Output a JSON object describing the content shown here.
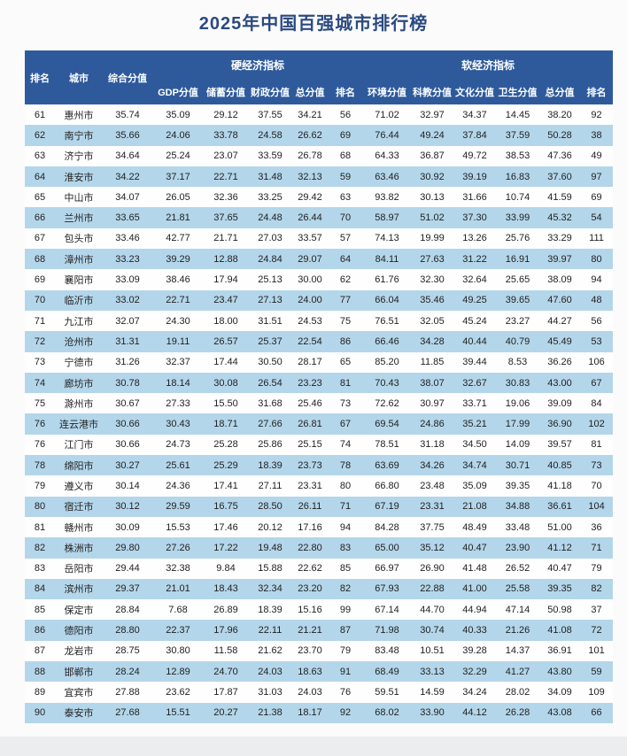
{
  "title": "2025年中国百强城市排行榜",
  "colors": {
    "header_bg": "#2e5a9c",
    "row_alt_bg": "#b4d6ea",
    "row_bg": "#fefefe",
    "title_text": "#2b4a80",
    "header_text": "#ffffff",
    "body_text": "#1f1f1f"
  },
  "table": {
    "header": {
      "rank": "排名",
      "city": "城市",
      "composite": "综合分值",
      "hard_group": "硬经济指标",
      "soft_group": "软经济指标",
      "hard_cols": [
        "GDP分值",
        "储蓄分值",
        "财政分值",
        "总分值",
        "排名"
      ],
      "soft_cols": [
        "环境分值",
        "科教分值",
        "文化分值",
        "卫生分值",
        "总分值",
        "排名"
      ]
    },
    "rows": [
      [
        "61",
        "惠州市",
        "35.74",
        "35.09",
        "29.12",
        "37.55",
        "34.21",
        "56",
        "71.02",
        "32.97",
        "34.37",
        "14.45",
        "38.20",
        "92"
      ],
      [
        "62",
        "南宁市",
        "35.66",
        "24.06",
        "33.78",
        "24.58",
        "26.62",
        "69",
        "76.44",
        "49.24",
        "37.84",
        "37.59",
        "50.28",
        "38"
      ],
      [
        "63",
        "济宁市",
        "34.64",
        "25.24",
        "23.07",
        "33.59",
        "26.78",
        "68",
        "64.33",
        "36.87",
        "49.72",
        "38.53",
        "47.36",
        "49"
      ],
      [
        "64",
        "淮安市",
        "34.22",
        "37.17",
        "22.71",
        "31.48",
        "32.13",
        "59",
        "63.46",
        "30.92",
        "39.19",
        "16.83",
        "37.60",
        "97"
      ],
      [
        "65",
        "中山市",
        "34.07",
        "26.05",
        "32.36",
        "33.25",
        "29.42",
        "63",
        "93.82",
        "30.13",
        "31.66",
        "10.74",
        "41.59",
        "69"
      ],
      [
        "66",
        "兰州市",
        "33.65",
        "21.81",
        "37.65",
        "24.48",
        "26.44",
        "70",
        "58.97",
        "51.02",
        "37.30",
        "33.99",
        "45.32",
        "54"
      ],
      [
        "67",
        "包头市",
        "33.46",
        "42.77",
        "21.71",
        "27.03",
        "33.57",
        "57",
        "74.13",
        "19.99",
        "13.26",
        "25.76",
        "33.29",
        "111"
      ],
      [
        "68",
        "漳州市",
        "33.23",
        "39.29",
        "12.88",
        "24.84",
        "29.07",
        "64",
        "84.11",
        "27.63",
        "31.22",
        "16.91",
        "39.97",
        "80"
      ],
      [
        "69",
        "襄阳市",
        "33.09",
        "38.46",
        "17.94",
        "25.13",
        "30.00",
        "62",
        "61.76",
        "32.30",
        "32.64",
        "25.65",
        "38.09",
        "94"
      ],
      [
        "70",
        "临沂市",
        "33.02",
        "22.71",
        "23.47",
        "27.13",
        "24.00",
        "77",
        "66.04",
        "35.46",
        "49.25",
        "39.65",
        "47.60",
        "48"
      ],
      [
        "71",
        "九江市",
        "32.07",
        "24.30",
        "18.00",
        "31.51",
        "24.53",
        "75",
        "76.51",
        "32.05",
        "45.24",
        "23.27",
        "44.27",
        "56"
      ],
      [
        "72",
        "沧州市",
        "31.31",
        "19.11",
        "26.57",
        "25.37",
        "22.54",
        "86",
        "66.46",
        "34.28",
        "40.44",
        "40.79",
        "45.49",
        "53"
      ],
      [
        "73",
        "宁德市",
        "31.26",
        "32.37",
        "17.44",
        "30.50",
        "28.17",
        "65",
        "85.20",
        "11.85",
        "39.44",
        "8.53",
        "36.26",
        "106"
      ],
      [
        "74",
        "廊坊市",
        "30.78",
        "18.14",
        "30.08",
        "26.54",
        "23.23",
        "81",
        "70.43",
        "38.07",
        "32.67",
        "30.83",
        "43.00",
        "67"
      ],
      [
        "75",
        "滁州市",
        "30.67",
        "27.33",
        "15.50",
        "31.68",
        "25.46",
        "73",
        "72.62",
        "30.97",
        "33.71",
        "19.06",
        "39.09",
        "84"
      ],
      [
        "76",
        "连云港市",
        "30.66",
        "30.43",
        "18.71",
        "27.66",
        "26.81",
        "67",
        "69.54",
        "24.86",
        "35.21",
        "17.99",
        "36.90",
        "102"
      ],
      [
        "76",
        "江门市",
        "30.66",
        "24.73",
        "25.28",
        "25.86",
        "25.15",
        "74",
        "78.51",
        "31.18",
        "34.50",
        "14.09",
        "39.57",
        "81"
      ],
      [
        "78",
        "绵阳市",
        "30.27",
        "25.61",
        "25.29",
        "18.39",
        "23.73",
        "78",
        "63.69",
        "34.26",
        "34.74",
        "30.71",
        "40.85",
        "73"
      ],
      [
        "79",
        "遵义市",
        "30.14",
        "24.36",
        "17.41",
        "27.11",
        "23.31",
        "80",
        "66.80",
        "23.48",
        "35.09",
        "39.35",
        "41.18",
        "70"
      ],
      [
        "80",
        "宿迁市",
        "30.12",
        "29.59",
        "16.75",
        "28.50",
        "26.11",
        "71",
        "67.19",
        "23.31",
        "21.08",
        "34.88",
        "36.61",
        "104"
      ],
      [
        "81",
        "赣州市",
        "30.09",
        "15.53",
        "17.46",
        "20.12",
        "17.16",
        "94",
        "84.28",
        "37.75",
        "48.49",
        "33.48",
        "51.00",
        "36"
      ],
      [
        "82",
        "株洲市",
        "29.80",
        "27.26",
        "17.22",
        "19.48",
        "22.80",
        "83",
        "65.00",
        "35.12",
        "40.47",
        "23.90",
        "41.12",
        "71"
      ],
      [
        "83",
        "岳阳市",
        "29.44",
        "32.38",
        "9.84",
        "15.88",
        "22.62",
        "85",
        "66.97",
        "26.90",
        "41.48",
        "26.52",
        "40.47",
        "79"
      ],
      [
        "84",
        "滨州市",
        "29.37",
        "21.01",
        "18.43",
        "32.34",
        "23.20",
        "82",
        "67.93",
        "22.88",
        "41.00",
        "25.58",
        "39.35",
        "82"
      ],
      [
        "85",
        "保定市",
        "28.84",
        "7.68",
        "26.89",
        "18.39",
        "15.16",
        "99",
        "67.14",
        "44.70",
        "44.94",
        "47.14",
        "50.98",
        "37"
      ],
      [
        "86",
        "德阳市",
        "28.80",
        "22.37",
        "17.96",
        "22.11",
        "21.21",
        "87",
        "71.98",
        "30.74",
        "40.33",
        "21.26",
        "41.08",
        "72"
      ],
      [
        "87",
        "龙岩市",
        "28.75",
        "30.80",
        "11.58",
        "21.62",
        "23.70",
        "79",
        "83.48",
        "10.51",
        "39.28",
        "14.37",
        "36.91",
        "101"
      ],
      [
        "88",
        "邯郸市",
        "28.24",
        "12.89",
        "24.70",
        "24.03",
        "18.63",
        "91",
        "68.49",
        "33.13",
        "32.29",
        "41.27",
        "43.80",
        "59"
      ],
      [
        "89",
        "宜宾市",
        "27.88",
        "23.62",
        "17.87",
        "31.03",
        "24.03",
        "76",
        "59.51",
        "14.59",
        "34.24",
        "28.02",
        "34.09",
        "109"
      ],
      [
        "90",
        "泰安市",
        "27.68",
        "15.51",
        "20.27",
        "21.38",
        "18.17",
        "92",
        "68.02",
        "33.90",
        "44.12",
        "26.28",
        "43.08",
        "66"
      ]
    ]
  }
}
